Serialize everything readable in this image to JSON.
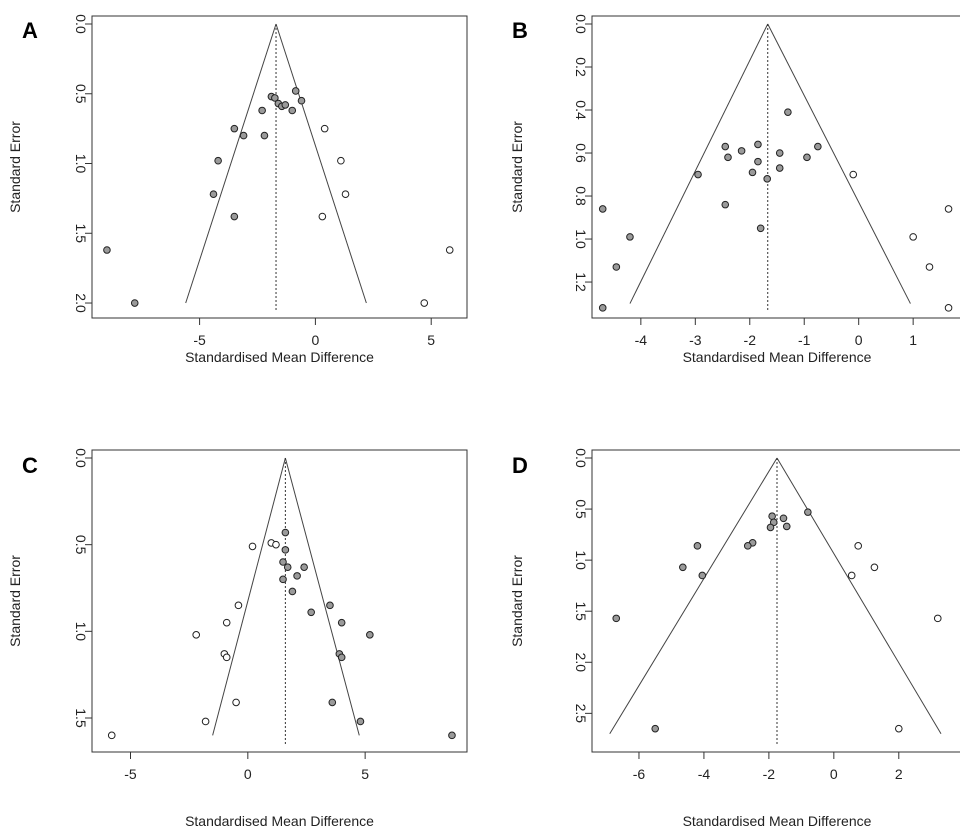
{
  "chart_data": [
    {
      "panel": "A",
      "type": "scatter",
      "xlabel": "Standardised Mean Difference",
      "ylabel": "Standard Error",
      "xlim": [
        -9.3,
        6.2
      ],
      "ylim": [
        2.05,
        0.0
      ],
      "y_reversed": true,
      "xticks": [
        -5,
        0,
        5
      ],
      "xtick_labels": [
        "-5",
        "0",
        "5"
      ],
      "yticks": [
        0.0,
        0.5,
        1.0,
        1.5,
        2.0
      ],
      "ytick_labels": [
        "0.0",
        "0.5",
        "1.0",
        "1.5",
        "2.0"
      ],
      "summary_effect": -1.7,
      "funnel_base": [
        -5.6,
        2.2
      ],
      "funnel_se": 2.0,
      "observed": [
        [
          -1.9,
          0.52
        ],
        [
          -1.75,
          0.53
        ],
        [
          -1.6,
          0.57
        ],
        [
          -1.45,
          0.59
        ],
        [
          -1.3,
          0.58
        ],
        [
          -0.85,
          0.48
        ],
        [
          -0.6,
          0.55
        ],
        [
          -1.0,
          0.62
        ],
        [
          -2.3,
          0.62
        ],
        [
          -3.5,
          0.75
        ],
        [
          -3.1,
          0.8
        ],
        [
          -2.2,
          0.8
        ],
        [
          -4.2,
          0.98
        ],
        [
          -4.4,
          1.22
        ],
        [
          -3.5,
          1.38
        ],
        [
          -9.0,
          1.62
        ],
        [
          -7.8,
          2.0
        ]
      ],
      "filled": [
        [
          0.4,
          0.75
        ],
        [
          1.1,
          0.98
        ],
        [
          1.3,
          1.22
        ],
        [
          0.3,
          1.38
        ],
        [
          4.7,
          2.0
        ],
        [
          5.8,
          1.62
        ]
      ]
    },
    {
      "panel": "B",
      "type": "scatter",
      "xlabel": "Standardised Mean Difference",
      "ylabel": "Standard Error",
      "xlim": [
        -4.75,
        1.75
      ],
      "ylim": [
        1.33,
        0.0
      ],
      "y_reversed": true,
      "xticks": [
        -4,
        -3,
        -2,
        -1,
        0,
        1
      ],
      "xtick_labels": [
        "-4",
        "-3",
        "-2",
        "-1",
        "0",
        "1"
      ],
      "yticks": [
        0.0,
        0.2,
        0.4,
        0.6,
        0.8,
        1.0,
        1.2
      ],
      "ytick_labels": [
        "0.0",
        "0.2",
        "0.4",
        "0.6",
        "0.8",
        "1.0",
        "1.2"
      ],
      "summary_effect": -1.67,
      "funnel_base": [
        -4.2,
        0.95
      ],
      "funnel_se": 1.3,
      "observed": [
        [
          -2.45,
          0.57
        ],
        [
          -2.4,
          0.62
        ],
        [
          -2.15,
          0.59
        ],
        [
          -1.85,
          0.56
        ],
        [
          -1.85,
          0.64
        ],
        [
          -1.95,
          0.69
        ],
        [
          -1.68,
          0.72
        ],
        [
          -1.45,
          0.6
        ],
        [
          -1.45,
          0.67
        ],
        [
          -1.3,
          0.41
        ],
        [
          -0.95,
          0.62
        ],
        [
          -0.75,
          0.57
        ],
        [
          -2.45,
          0.84
        ],
        [
          -1.8,
          0.95
        ],
        [
          -2.95,
          0.7
        ],
        [
          -4.2,
          0.99
        ],
        [
          -4.45,
          1.13
        ],
        [
          -4.7,
          0.86
        ],
        [
          -4.7,
          1.32
        ]
      ],
      "filled": [
        [
          -0.1,
          0.7
        ],
        [
          1.0,
          0.99
        ],
        [
          1.3,
          1.13
        ],
        [
          1.65,
          0.86
        ],
        [
          1.65,
          1.32
        ]
      ]
    },
    {
      "panel": "C",
      "type": "scatter",
      "xlabel": "Standardised Mean Difference",
      "ylabel": "Standard Error",
      "xlim": [
        -6.3,
        9.0
      ],
      "ylim": [
        1.65,
        0.0
      ],
      "y_reversed": true,
      "xticks": [
        -5,
        0,
        5
      ],
      "xtick_labels": [
        "-5",
        "0",
        "5"
      ],
      "yticks": [
        0.0,
        0.5,
        1.0,
        1.5
      ],
      "ytick_labels": [
        "0.0",
        "0.5",
        "1.0",
        "1.5"
      ],
      "summary_effect": 1.6,
      "funnel_base": [
        -1.5,
        4.75
      ],
      "funnel_se": 1.6,
      "observed": [
        [
          1.6,
          0.43
        ],
        [
          1.6,
          0.53
        ],
        [
          1.5,
          0.6
        ],
        [
          1.5,
          0.7
        ],
        [
          1.7,
          0.63
        ],
        [
          2.1,
          0.68
        ],
        [
          2.4,
          0.63
        ],
        [
          1.9,
          0.77
        ],
        [
          2.7,
          0.89
        ],
        [
          3.5,
          0.85
        ],
        [
          4.0,
          0.95
        ],
        [
          3.9,
          1.13
        ],
        [
          4.0,
          1.15
        ],
        [
          5.2,
          1.02
        ],
        [
          3.6,
          1.41
        ],
        [
          4.8,
          1.52
        ],
        [
          8.7,
          1.6
        ]
      ],
      "filled": [
        [
          1.0,
          0.49
        ],
        [
          1.2,
          0.5
        ],
        [
          0.2,
          0.51
        ],
        [
          -0.4,
          0.85
        ],
        [
          -0.9,
          0.95
        ],
        [
          -2.2,
          1.02
        ],
        [
          -1.0,
          1.13
        ],
        [
          -0.9,
          1.15
        ],
        [
          -0.5,
          1.41
        ],
        [
          -1.8,
          1.52
        ],
        [
          -5.8,
          1.6
        ]
      ]
    },
    {
      "panel": "D",
      "type": "scatter",
      "xlabel": "Standardised Mean Difference",
      "ylabel": "Standard Error",
      "xlim": [
        -7.2,
        3.7
      ],
      "ylim": [
        2.8,
        0.0
      ],
      "y_reversed": true,
      "xticks": [
        -6,
        -4,
        -2,
        0,
        2
      ],
      "xtick_labels": [
        "-6",
        "-4",
        "-2",
        "0",
        "2"
      ],
      "yticks": [
        0.0,
        0.5,
        1.0,
        1.5,
        2.0,
        2.5
      ],
      "ytick_labels": [
        "0.0",
        "0.5",
        "1.0",
        "1.5",
        "2.0",
        "2.5"
      ],
      "summary_effect": -1.75,
      "funnel_base": [
        -6.9,
        3.3
      ],
      "funnel_se": 2.7,
      "observed": [
        [
          -1.9,
          0.57
        ],
        [
          -1.85,
          0.63
        ],
        [
          -1.95,
          0.68
        ],
        [
          -1.55,
          0.59
        ],
        [
          -1.45,
          0.67
        ],
        [
          -0.8,
          0.53
        ],
        [
          -2.5,
          0.83
        ],
        [
          -2.65,
          0.86
        ],
        [
          -4.2,
          0.86
        ],
        [
          -4.65,
          1.07
        ],
        [
          -4.05,
          1.15
        ],
        [
          -6.7,
          1.57
        ],
        [
          -5.5,
          2.65
        ]
      ],
      "filled": [
        [
          0.75,
          0.86
        ],
        [
          1.25,
          1.07
        ],
        [
          0.55,
          1.15
        ],
        [
          3.2,
          1.57
        ],
        [
          2.0,
          2.65
        ]
      ]
    }
  ]
}
